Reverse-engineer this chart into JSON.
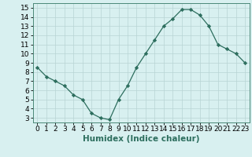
{
  "x": [
    0,
    1,
    2,
    3,
    4,
    5,
    6,
    7,
    8,
    9,
    10,
    11,
    12,
    13,
    14,
    15,
    16,
    17,
    18,
    19,
    20,
    21,
    22,
    23
  ],
  "y": [
    8.5,
    7.5,
    7.0,
    6.5,
    5.5,
    5.0,
    3.5,
    3.0,
    2.8,
    5.0,
    6.5,
    8.5,
    10.0,
    11.5,
    13.0,
    13.8,
    14.8,
    14.8,
    14.2,
    13.0,
    11.0,
    10.5,
    10.0,
    9.0
  ],
  "line_color": "#2d6e5e",
  "marker": "D",
  "marker_size": 2.2,
  "bg_color": "#d8f0f0",
  "grid_color": "#b8d4d4",
  "xlabel": "Humidex (Indice chaleur)",
  "ylim": [
    2.5,
    15.5
  ],
  "xlim": [
    -0.5,
    23.5
  ],
  "yticks": [
    3,
    4,
    5,
    6,
    7,
    8,
    9,
    10,
    11,
    12,
    13,
    14,
    15
  ],
  "xticks": [
    0,
    1,
    2,
    3,
    4,
    5,
    6,
    7,
    8,
    9,
    10,
    11,
    12,
    13,
    14,
    15,
    16,
    17,
    18,
    19,
    20,
    21,
    22,
    23
  ],
  "xlabel_fontsize": 7.5,
  "tick_fontsize": 6.5,
  "spine_color": "#4a8878"
}
